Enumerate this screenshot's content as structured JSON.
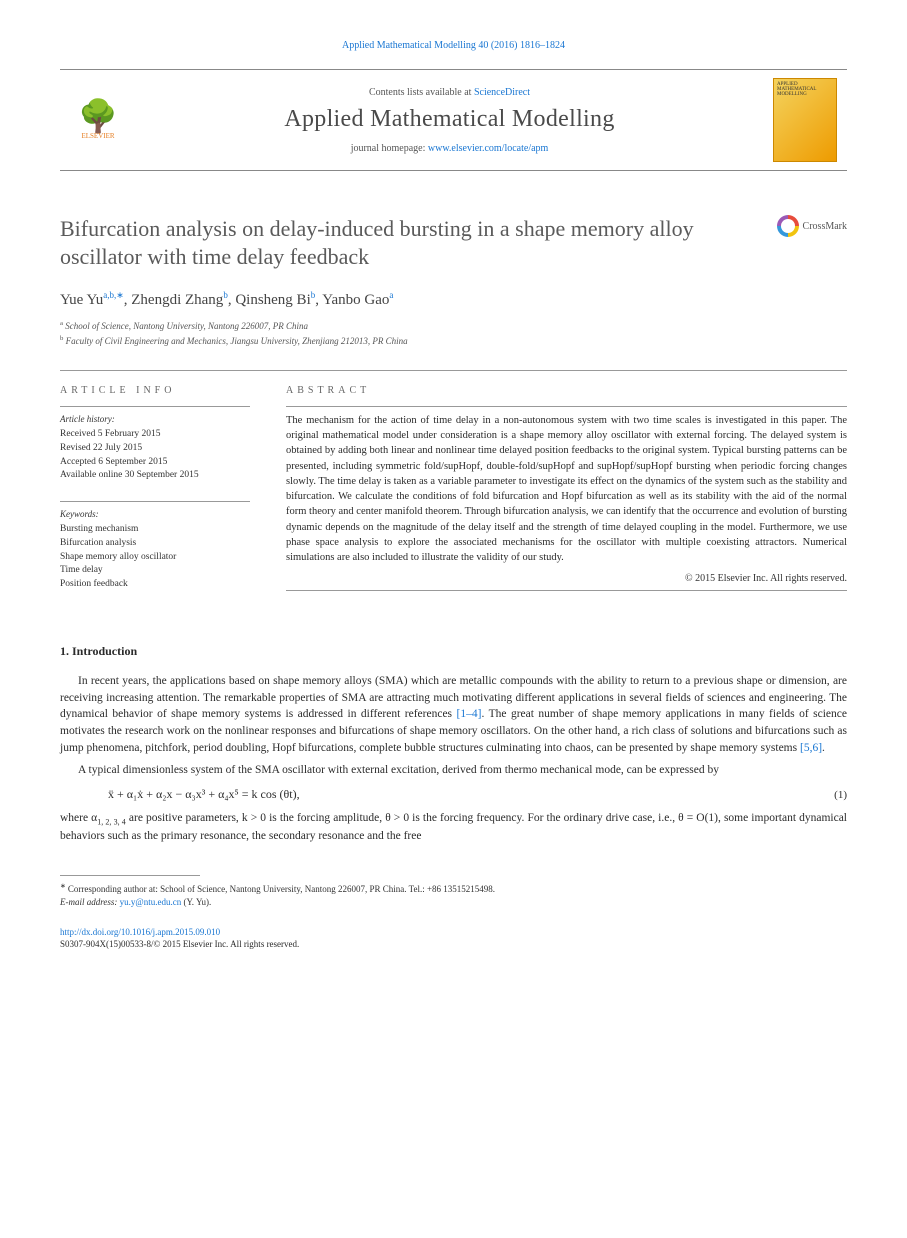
{
  "citation": "Applied Mathematical Modelling 40 (2016) 1816–1824",
  "header": {
    "contents_prefix": "Contents lists available at ",
    "contents_link": "ScienceDirect",
    "journal_name": "Applied Mathematical Modelling",
    "homepage_prefix": "journal homepage: ",
    "homepage_link": "www.elsevier.com/locate/apm",
    "publisher_name": "ELSEVIER"
  },
  "crossmark_label": "CrossMark",
  "title": "Bifurcation analysis on delay-induced bursting in a shape memory alloy oscillator with time delay feedback",
  "authors_html": "Yue Yu",
  "authors": [
    {
      "name": "Yue Yu",
      "sup": "a,b,∗"
    },
    {
      "name": "Zhengdi Zhang",
      "sup": "b"
    },
    {
      "name": "Qinsheng Bi",
      "sup": "b"
    },
    {
      "name": "Yanbo Gao",
      "sup": "a"
    }
  ],
  "affiliations": [
    {
      "sup": "a",
      "text": "School of Science, Nantong University, Nantong 226007, PR China"
    },
    {
      "sup": "b",
      "text": "Faculty of Civil Engineering and Mechanics, Jiangsu University, Zhenjiang 212013, PR China"
    }
  ],
  "article_info": {
    "label": "ARTICLE INFO",
    "history_label": "Article history:",
    "history": [
      "Received 5 February 2015",
      "Revised 22 July 2015",
      "Accepted 6 September 2015",
      "Available online 30 September 2015"
    ],
    "keywords_label": "Keywords:",
    "keywords": [
      "Bursting mechanism",
      "Bifurcation analysis",
      "Shape memory alloy oscillator",
      "Time delay",
      "Position feedback"
    ]
  },
  "abstract": {
    "label": "ABSTRACT",
    "text": "The mechanism for the action of time delay in a non-autonomous system with two time scales is investigated in this paper. The original mathematical model under consideration is a shape memory alloy oscillator with external forcing. The delayed system is obtained by adding both linear and nonlinear time delayed position feedbacks to the original system. Typical bursting patterns can be presented, including symmetric fold/supHopf, double-fold/supHopf and supHopf/supHopf bursting when periodic forcing changes slowly. The time delay is taken as a variable parameter to investigate its effect on the dynamics of the system such as the stability and bifurcation. We calculate the conditions of fold bifurcation and Hopf bifurcation as well as its stability with the aid of the normal form theory and center manifold theorem. Through bifurcation analysis, we can identify that the occurrence and evolution of bursting dynamic depends on the magnitude of the delay itself and the strength of time delayed coupling in the model. Furthermore, we use phase space analysis to explore the associated mechanisms for the oscillator with multiple coexisting attractors. Numerical simulations are also included to illustrate the validity of our study.",
    "copyright": "© 2015 Elsevier Inc. All rights reserved."
  },
  "section1": {
    "heading": "1. Introduction",
    "p1a": "In recent years, the applications based on shape memory alloys (SMA) which are metallic compounds with the ability to return to a previous shape or dimension, are receiving increasing attention. The remarkable properties of SMA are attracting much motivating different applications in several fields of sciences and engineering. The dynamical behavior of shape memory systems is addressed in different references ",
    "ref1": "[1–4]",
    "p1b": ". The great number of shape memory applications in many fields of science motivates the research work on the nonlinear responses and bifurcations of shape memory oscillators. On the other hand, a rich class of solutions and bifurcations such as jump phenomena, pitchfork, period doubling, Hopf bifurcations, complete bubble structures culminating into chaos, can be presented by shape memory systems ",
    "ref2": "[5,6]",
    "p1c": ".",
    "p2": "A typical dimensionless system of the SMA oscillator with external excitation, derived from thermo mechanical mode, can be expressed by",
    "equation": "ẍ + α₁ẋ + α₂x − α₃x³ + α₄x⁵ = k cos (θt),",
    "eqnum": "(1)",
    "p3a": "where α",
    "p3_sub": "1, 2, 3, 4",
    "p3b": " are positive parameters, k > 0 is the forcing amplitude, θ > 0 is the forcing frequency. For the ordinary drive case, i.e., θ = O(1), some important dynamical behaviors such as the primary resonance, the secondary resonance and the free"
  },
  "footnotes": {
    "corr_symbol": "∗",
    "corr_text": "Corresponding author at: School of Science, Nantong University, Nantong 226007, PR China. Tel.: +86 13515215498.",
    "email_label": "E-mail address: ",
    "email": "yu.y@ntu.edu.cn",
    "email_suffix": " (Y. Yu)."
  },
  "bottom": {
    "doi": "http://dx.doi.org/10.1016/j.apm.2015.09.010",
    "line2": "S0307-904X(15)00533-8/© 2015 Elsevier Inc. All rights reserved."
  }
}
